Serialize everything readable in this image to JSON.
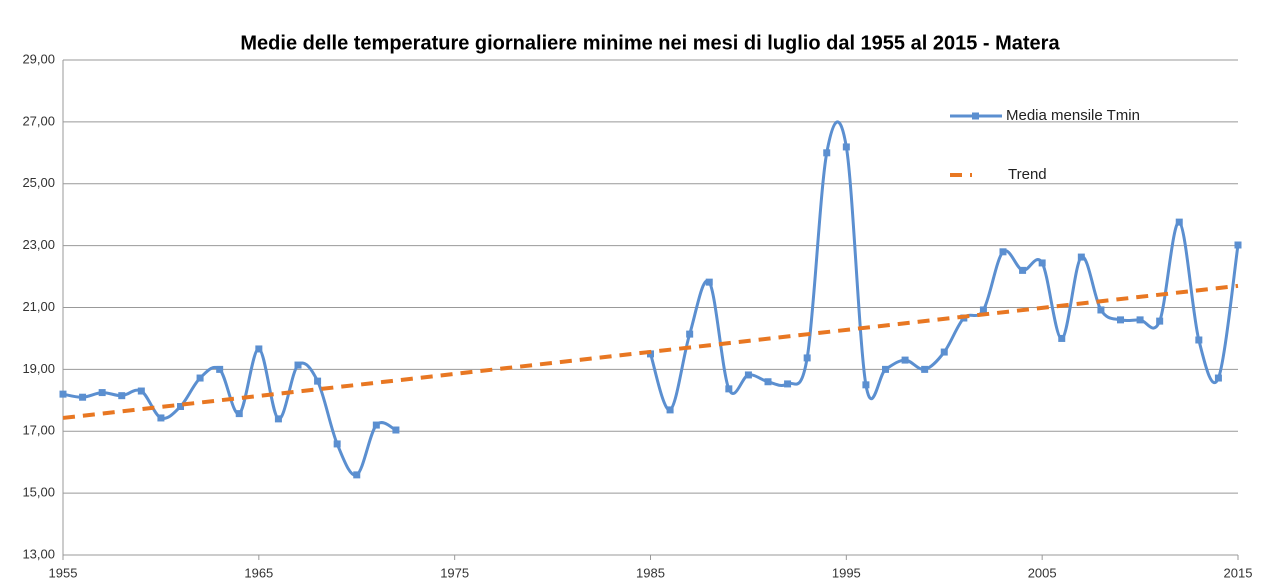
{
  "chart_data": {
    "type": "line",
    "title": "Medie delle temperature giornaliere minime nei mesi di luglio dal 1955 al 2015 - Matera",
    "x": [
      1955,
      1956,
      1957,
      1958,
      1959,
      1960,
      1961,
      1962,
      1963,
      1964,
      1965,
      1966,
      1967,
      1968,
      1969,
      1970,
      1971,
      1972,
      1973,
      1974,
      1975,
      1976,
      1977,
      1978,
      1979,
      1980,
      1981,
      1982,
      1983,
      1984,
      1985,
      1986,
      1987,
      1988,
      1989,
      1990,
      1991,
      1992,
      1993,
      1994,
      1995,
      1996,
      1997,
      1998,
      1999,
      2000,
      2001,
      2002,
      2003,
      2004,
      2005,
      2006,
      2007,
      2008,
      2009,
      2010,
      2011,
      2012,
      2013,
      2014,
      2015
    ],
    "series": [
      {
        "name": "Media mensile Tmin",
        "color": "#5b8fd0",
        "values": [
          18.2,
          18.1,
          18.25,
          18.15,
          18.3,
          17.43,
          17.8,
          18.72,
          19.0,
          17.57,
          19.66,
          17.4,
          19.14,
          18.62,
          16.59,
          15.59,
          17.2,
          17.04,
          null,
          null,
          null,
          null,
          null,
          null,
          null,
          null,
          null,
          null,
          null,
          null,
          19.5,
          17.69,
          20.14,
          21.82,
          18.37,
          18.82,
          18.6,
          18.53,
          19.37,
          26.0,
          26.19,
          18.5,
          19.0,
          19.3,
          19.0,
          19.56,
          20.66,
          20.92,
          22.8,
          22.2,
          22.44,
          20.0,
          22.63,
          20.92,
          20.6,
          20.6,
          20.56,
          23.76,
          19.95,
          18.72,
          23.02
        ]
      },
      {
        "name": "Trend",
        "color": "#e87722",
        "dashed": true,
        "x": [
          1955,
          2015
        ],
        "values": [
          17.43,
          21.7
        ]
      }
    ],
    "xlim": [
      1955,
      2015
    ],
    "xticks": [
      1955,
      1965,
      1975,
      1985,
      1995,
      2005,
      2015
    ],
    "ylim": [
      13,
      29
    ],
    "yticks": [
      {
        "value": 13,
        "label": "13,00"
      },
      {
        "value": 15,
        "label": "15,00"
      },
      {
        "value": 17,
        "label": "17,00"
      },
      {
        "value": 19,
        "label": "19,00"
      },
      {
        "value": 21,
        "label": "21,00"
      },
      {
        "value": 23,
        "label": "23,00"
      },
      {
        "value": 25,
        "label": "25,00"
      },
      {
        "value": 27,
        "label": "27,00"
      },
      {
        "value": 29,
        "label": "29,00"
      }
    ],
    "grid": true,
    "legend": "top-right",
    "smooth": true
  }
}
